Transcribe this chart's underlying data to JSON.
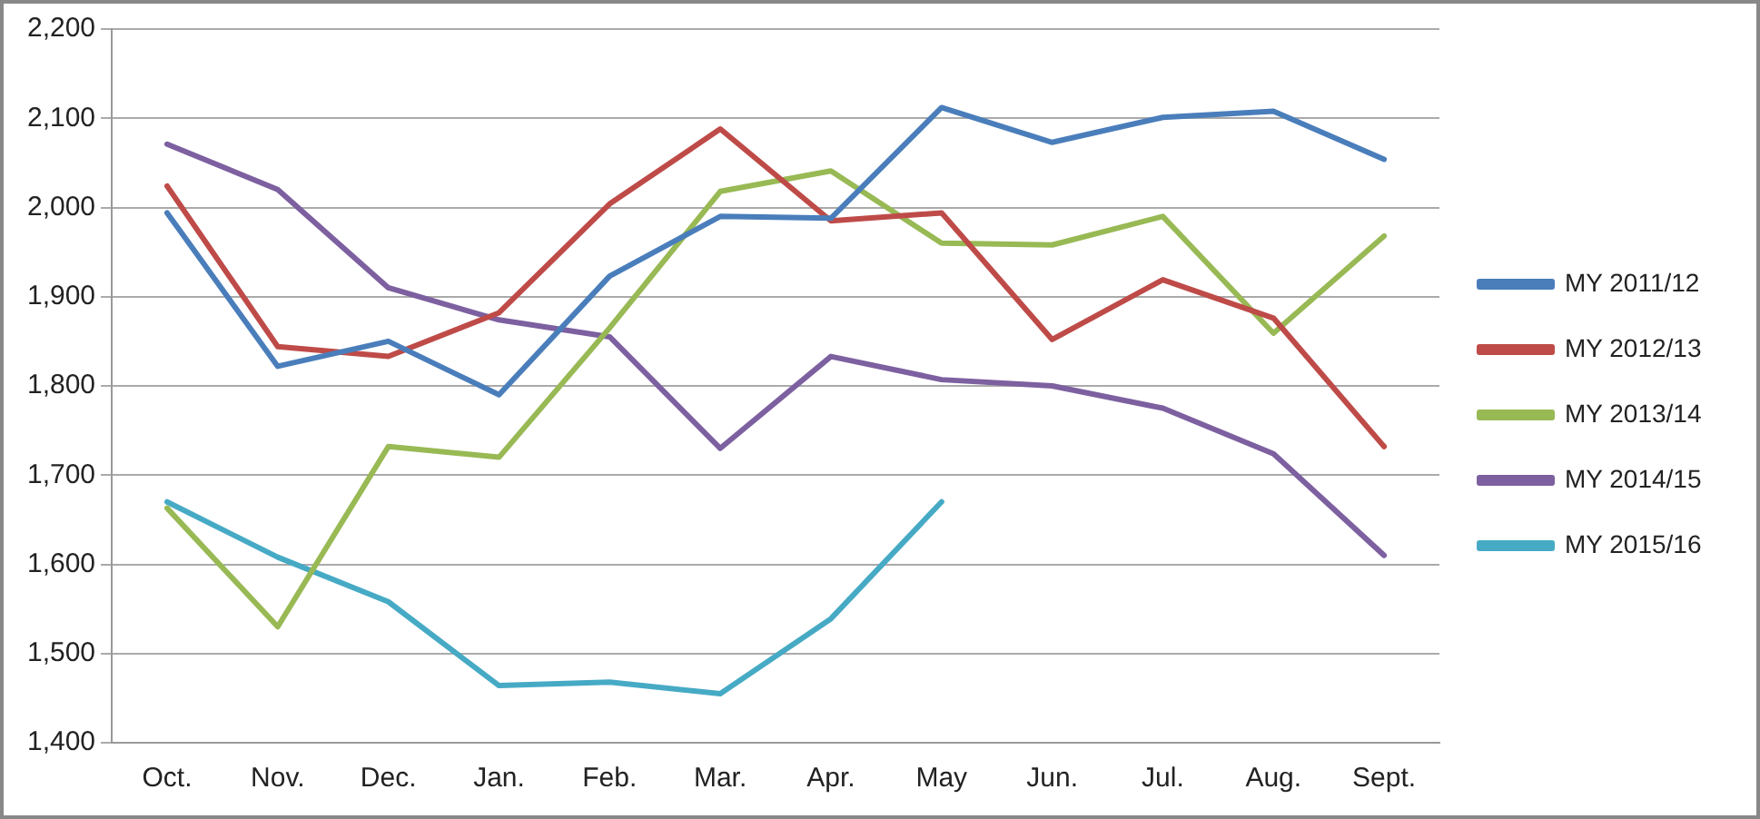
{
  "chart_data": {
    "type": "line",
    "categories": [
      "Oct.",
      "Nov.",
      "Dec.",
      "Jan.",
      "Feb.",
      "Mar.",
      "Apr.",
      "May",
      "Jun.",
      "Jul.",
      "Aug.",
      "Sept."
    ],
    "series": [
      {
        "name": "MY 2011/12",
        "color": "#4a7ebb",
        "values": [
          1994,
          1822,
          1850,
          1790,
          1923,
          1990,
          1988,
          2112,
          2073,
          2101,
          2108,
          2054
        ]
      },
      {
        "name": "MY 2012/13",
        "color": "#be4b48",
        "values": [
          2024,
          1844,
          1833,
          1882,
          2004,
          2088,
          1985,
          1994,
          1852,
          1919,
          1876,
          1732
        ]
      },
      {
        "name": "MY 2013/14",
        "color": "#98b954",
        "values": [
          1663,
          1530,
          1732,
          1720,
          1865,
          2018,
          2041,
          1960,
          1958,
          1990,
          1859,
          1968
        ]
      },
      {
        "name": "MY 2014/15",
        "color": "#7d60a0",
        "values": [
          2071,
          2020,
          1910,
          1874,
          1855,
          1730,
          1833,
          1807,
          1800,
          1775,
          1724,
          1610
        ]
      },
      {
        "name": "MY 2015/16",
        "color": "#46aac5",
        "values": [
          1670,
          1608,
          1558,
          1464,
          1468,
          1455,
          1539,
          1670,
          null,
          null,
          null,
          null
        ]
      }
    ],
    "ylim": [
      1400,
      2200
    ],
    "yticks": [
      {
        "value": 1400,
        "label": "1,400"
      },
      {
        "value": 1500,
        "label": "1,500"
      },
      {
        "value": 1600,
        "label": "1,600"
      },
      {
        "value": 1700,
        "label": "1,700"
      },
      {
        "value": 1800,
        "label": "1,800"
      },
      {
        "value": 1900,
        "label": "1,900"
      },
      {
        "value": 2000,
        "label": "2,000"
      },
      {
        "value": 2100,
        "label": "2,100"
      },
      {
        "value": 2200,
        "label": "2,200"
      }
    ],
    "grid": "y",
    "legend": "right",
    "marker": "none",
    "line_style": "solid"
  }
}
